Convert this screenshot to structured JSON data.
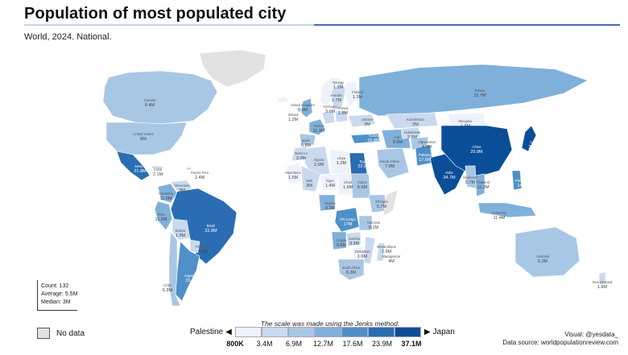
{
  "title": "Population of most populated city",
  "subtitle": "World, 2024. National.",
  "stats": {
    "count": "Count: 132",
    "average": "Average: 5.5M",
    "median": "Median: 3M"
  },
  "no_data_label": "No data",
  "legend": {
    "note": "The scale was made using the Jenks method.",
    "low_label": "Palestine",
    "high_label": "Japan",
    "ticks": [
      "800K",
      "3.4M",
      "6.9M",
      "12.7M",
      "17.6M",
      "23.9M",
      "37.1M"
    ],
    "colors": [
      "#eef2fa",
      "#c9daf0",
      "#a8c7e4",
      "#7fb0da",
      "#4f90c9",
      "#2a6db2",
      "#0b4e98"
    ],
    "no_data_color": "#e2e2e2"
  },
  "credit": {
    "visual": "Visual: @yesdata_",
    "source": "Data source: worldpopulationreview.com"
  },
  "countries": [
    {
      "name": "Canada",
      "value": "6.4M",
      "cls": 2
    },
    {
      "name": "United States",
      "value": "8M",
      "cls": 2
    },
    {
      "name": "Mexico",
      "value": "21.8M",
      "cls": 5
    },
    {
      "name": "Cuba",
      "value": "2.1M",
      "cls": 1
    },
    {
      "name": "Puerto Rico",
      "value": "2.4M",
      "cls": 1
    },
    {
      "name": "Colombia",
      "value": "11.5M",
      "cls": 3
    },
    {
      "name": "Venezuela",
      "value": "3M",
      "cls": 1
    },
    {
      "name": "Peru",
      "value": "11.3M",
      "cls": 3
    },
    {
      "name": "Brazil",
      "value": "22.8M",
      "cls": 5
    },
    {
      "name": "Bolivia",
      "value": "1.9M",
      "cls": 1
    },
    {
      "name": "Paraguay",
      "value": "3.5M",
      "cls": 1
    },
    {
      "name": "Argentina",
      "value": "15.6M",
      "cls": 4
    },
    {
      "name": "Chile",
      "value": "6.9M",
      "cls": 2
    },
    {
      "name": "Greenland",
      "value": "",
      "cls": -1
    },
    {
      "name": "Iceland",
      "value": "",
      "cls": 0
    },
    {
      "name": "Norway",
      "value": "1.1M",
      "cls": 0
    },
    {
      "name": "Sweden",
      "value": "1.7M",
      "cls": 1
    },
    {
      "name": "Finland",
      "value": "1.3M",
      "cls": 0
    },
    {
      "name": "United Kingdom",
      "value": "9.6M",
      "cls": 3
    },
    {
      "name": "Ireland",
      "value": "1.2M",
      "cls": 0
    },
    {
      "name": "France",
      "value": "11.3M",
      "cls": 3
    },
    {
      "name": "Spain",
      "value": "6.8M",
      "cls": 2
    },
    {
      "name": "Germany",
      "value": "3.6M",
      "cls": 1
    },
    {
      "name": "Poland",
      "value": "1.8M",
      "cls": 1
    },
    {
      "name": "Ukraine",
      "value": "3M",
      "cls": 1
    },
    {
      "name": "Russia",
      "value": "12.7M",
      "cls": 3
    },
    {
      "name": "Turkey",
      "value": "15.8M",
      "cls": 4
    },
    {
      "name": "Morocco",
      "value": "3.9M",
      "cls": 1
    },
    {
      "name": "Algeria",
      "value": "2.9M",
      "cls": 1
    },
    {
      "name": "Libya",
      "value": "1.2M",
      "cls": 0
    },
    {
      "name": "Egypt",
      "value": "22.6M",
      "cls": 5
    },
    {
      "name": "Mauritania",
      "value": "1.5M",
      "cls": 0
    },
    {
      "name": "Mali",
      "value": "3M",
      "cls": 1
    },
    {
      "name": "Niger",
      "value": "1.4M",
      "cls": 0
    },
    {
      "name": "Chad",
      "value": "1.6M",
      "cls": 0
    },
    {
      "name": "Sudan",
      "value": "6.5M",
      "cls": 2
    },
    {
      "name": "Ethiopia",
      "value": "5.7M",
      "cls": 2
    },
    {
      "name": "Nigeria",
      "value": "9.3M",
      "cls": 3
    },
    {
      "name": "DR Congo",
      "value": "17M",
      "cls": 4
    },
    {
      "name": "Angola",
      "value": "9.6M",
      "cls": 3
    },
    {
      "name": "Tanzania",
      "value": "8.1M",
      "cls": 2
    },
    {
      "name": "Zambia",
      "value": "3.3M",
      "cls": 1
    },
    {
      "name": "Zimbabwe",
      "value": "1.6M",
      "cls": 0
    },
    {
      "name": "Mozambique",
      "value": "1.9M",
      "cls": 1
    },
    {
      "name": "South Africa",
      "value": "6.3M",
      "cls": 2
    },
    {
      "name": "Madagascar",
      "value": "4M",
      "cls": 1
    },
    {
      "name": "Somalia",
      "value": "",
      "cls": -1
    },
    {
      "name": "Saudi Arabia",
      "value": "7.9M",
      "cls": 2
    },
    {
      "name": "Iran",
      "value": "9.6M",
      "cls": 3
    },
    {
      "name": "Kazakhstan",
      "value": "2M",
      "cls": 1
    },
    {
      "name": "Uzbekistan",
      "value": "2.9M",
      "cls": 1
    },
    {
      "name": "Afghanistan",
      "value": "4.7M",
      "cls": 2
    },
    {
      "name": "Pakistan",
      "value": "17.6M",
      "cls": 4
    },
    {
      "name": "India",
      "value": "34.7M",
      "cls": 6
    },
    {
      "name": "Mongolia",
      "value": "1.6M",
      "cls": 0
    },
    {
      "name": "China",
      "value": "29.9M",
      "cls": 6
    },
    {
      "name": "Japan",
      "value": "37.1M",
      "cls": 6
    },
    {
      "name": "Myanmar",
      "value": "5.7M",
      "cls": 2
    },
    {
      "name": "Thailand",
      "value": "11.2M",
      "cls": 3
    },
    {
      "name": "Philippines",
      "value": "14.9M",
      "cls": 4
    },
    {
      "name": "Indonesia",
      "value": "11.4M",
      "cls": 3
    },
    {
      "name": "Australia",
      "value": "5.3M",
      "cls": 2
    },
    {
      "name": "New Zealand",
      "value": "1.8M",
      "cls": 1
    }
  ]
}
